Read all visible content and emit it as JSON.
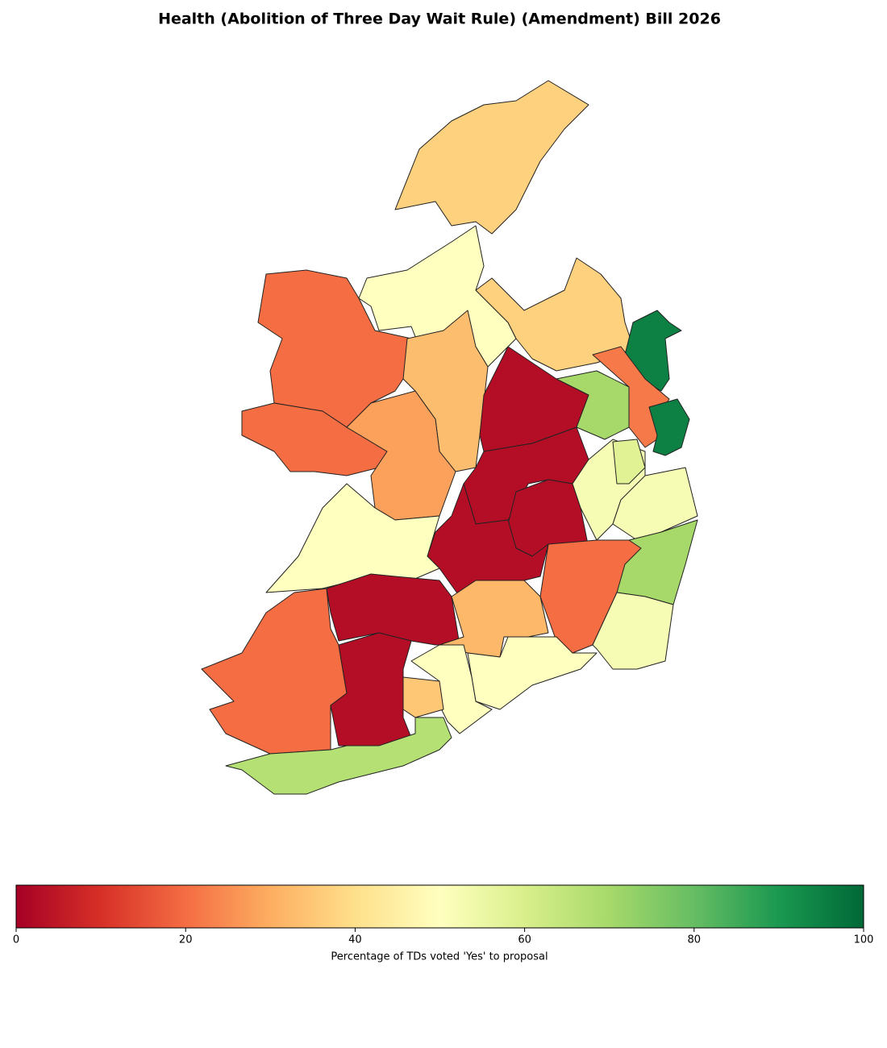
{
  "chart_data": {
    "type": "choropleth",
    "title": "Health (Abolition of Three Day Wait Rule) (Amendment) Bill 2026",
    "colormap": "RdYlGn",
    "values": [
      37,
      50,
      20,
      20,
      33,
      28,
      37,
      95,
      22,
      3,
      70,
      95,
      3,
      3,
      3,
      52,
      58,
      52,
      70,
      20,
      52,
      50,
      3,
      20,
      3,
      32,
      50,
      50,
      35,
      67
    ],
    "colorbar": {
      "label": "Percentage of TDs voted 'Yes' to proposal",
      "lim": [
        0,
        100
      ],
      "ticks": [
        0,
        20,
        40,
        60,
        80,
        100
      ]
    }
  }
}
